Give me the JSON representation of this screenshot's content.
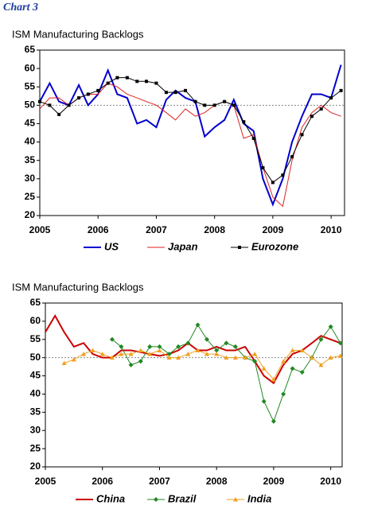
{
  "heading": "Chart 3",
  "chart_data": [
    {
      "type": "line",
      "title": "ISM Manufacturing Backlogs",
      "x": [
        2005,
        2005.17,
        2005.33,
        2005.5,
        2005.67,
        2005.83,
        2006,
        2006.17,
        2006.33,
        2006.5,
        2006.67,
        2006.83,
        2007,
        2007.17,
        2007.33,
        2007.5,
        2007.67,
        2007.83,
        2008,
        2008.17,
        2008.33,
        2008.5,
        2008.67,
        2008.83,
        2009,
        2009.17,
        2009.33,
        2009.5,
        2009.67,
        2009.83,
        2010,
        2010.17
      ],
      "series": [
        {
          "name": "US",
          "color": "#0000cc",
          "line_width": 2,
          "marker": "none",
          "values": [
            51,
            56,
            51,
            50,
            55.5,
            50,
            53,
            59.5,
            53,
            52,
            45,
            46,
            44,
            51.5,
            54,
            52,
            51,
            41.5,
            44,
            46,
            51.5,
            45,
            43,
            30,
            23,
            30,
            40,
            47,
            53,
            53,
            52,
            61
          ]
        },
        {
          "name": "Japan",
          "color": "#dd2222",
          "line_width": 1,
          "marker": "none",
          "values": [
            49,
            52,
            52,
            50,
            52,
            53,
            53,
            56,
            55,
            53,
            52,
            51,
            50,
            48,
            46,
            49,
            47,
            48,
            50,
            51,
            50,
            41,
            42,
            33,
            25,
            22.5,
            35,
            44,
            48,
            50,
            48,
            47
          ]
        },
        {
          "name": "Eurozone",
          "color": "#000000",
          "line_width": 1,
          "marker": "square",
          "values": [
            51,
            50,
            47.5,
            50,
            52,
            53,
            54,
            56,
            57.5,
            57.5,
            56.5,
            56.5,
            56,
            53.5,
            53.5,
            54,
            51,
            50,
            50,
            51,
            50,
            45.5,
            41,
            33,
            29,
            31,
            36,
            42,
            47,
            49,
            52,
            54
          ]
        }
      ],
      "reference_line": 50,
      "xlim": [
        2005,
        2010.23
      ],
      "xticks": [
        2005,
        2006,
        2007,
        2008,
        2009,
        2010
      ],
      "ylim": [
        20,
        65
      ],
      "yticks": [
        20,
        25,
        30,
        35,
        40,
        45,
        50,
        55,
        60,
        65
      ]
    },
    {
      "type": "line",
      "title": "ISM Manufacturing Backlogs",
      "x": [
        2005,
        2005.17,
        2005.33,
        2005.5,
        2005.67,
        2005.83,
        2006,
        2006.17,
        2006.33,
        2006.5,
        2006.67,
        2006.83,
        2007,
        2007.17,
        2007.33,
        2007.5,
        2007.67,
        2007.83,
        2008,
        2008.17,
        2008.33,
        2008.5,
        2008.67,
        2008.83,
        2009,
        2009.17,
        2009.33,
        2009.5,
        2009.67,
        2009.83,
        2010,
        2010.17
      ],
      "series": [
        {
          "name": "China",
          "color": "#cc0000",
          "line_width": 2,
          "marker": "none",
          "values": [
            57,
            61.5,
            57,
            53,
            54,
            51,
            50,
            50,
            52,
            52,
            51.5,
            51,
            50.5,
            51,
            52,
            54,
            52,
            52,
            53,
            52,
            52,
            53,
            49,
            45,
            43,
            48,
            51,
            52,
            54,
            56,
            55,
            54
          ]
        },
        {
          "name": "Brazil",
          "color": "#228822",
          "line_width": 1,
          "marker": "diamond",
          "values": [
            null,
            null,
            null,
            null,
            null,
            null,
            null,
            55,
            53,
            48,
            49,
            53,
            53,
            51,
            53,
            54,
            59,
            55,
            52,
            54,
            53,
            50,
            49,
            38,
            32.5,
            40,
            47,
            46,
            50,
            55,
            58.5,
            54
          ]
        },
        {
          "name": "India",
          "color": "#f0a020",
          "line_width": 1,
          "marker": "triangle",
          "values": [
            null,
            null,
            48.5,
            49.5,
            51,
            52,
            51,
            50,
            51,
            51,
            52,
            51,
            52,
            50,
            50,
            51,
            52,
            51,
            51,
            50,
            50,
            50,
            51,
            47,
            44,
            49,
            52,
            52,
            50,
            48,
            50,
            50.5
          ]
        }
      ],
      "reference_line": 50,
      "xlim": [
        2005,
        2010.2
      ],
      "xticks": [
        2005,
        2006,
        2007,
        2008,
        2009,
        2010
      ],
      "ylim": [
        20,
        65
      ],
      "yticks": [
        20,
        25,
        30,
        35,
        40,
        45,
        50,
        55,
        60,
        65
      ]
    }
  ]
}
